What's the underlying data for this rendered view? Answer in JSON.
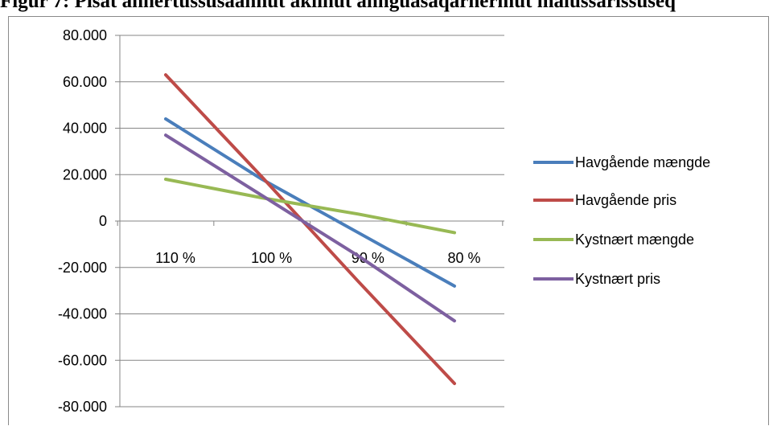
{
  "chart_title": "Figur 7: Pisat annertussusaannut akiinut annguasaqarnermut malussarissuseq",
  "chart_data": {
    "type": "line",
    "categories": [
      "110 %",
      "100 %",
      "90 %",
      "80 %"
    ],
    "series": [
      {
        "name": "Havgående mængde",
        "color": "#4a7ebb",
        "values": [
          44000,
          18000,
          -5000,
          -28000
        ]
      },
      {
        "name": "Havgående pris",
        "color": "#be4b48",
        "values": [
          63000,
          19000,
          -26000,
          -70000
        ]
      },
      {
        "name": "Kystnært mængde",
        "color": "#98b954",
        "values": [
          18000,
          10000,
          3000,
          -5000
        ]
      },
      {
        "name": "Kystnært pris",
        "color": "#7d60a0",
        "values": [
          37000,
          11000,
          -15000,
          -43000
        ]
      }
    ],
    "yticks": [
      "80.000",
      "60.000",
      "40.000",
      "20.000",
      "0",
      "-20.000",
      "-40.000",
      "-60.000",
      "-80.000"
    ],
    "ylim": [
      -80000,
      80000
    ],
    "ystep": 20000,
    "grid": true,
    "legend_position": "right",
    "title": "",
    "xlabel": "",
    "ylabel": ""
  }
}
